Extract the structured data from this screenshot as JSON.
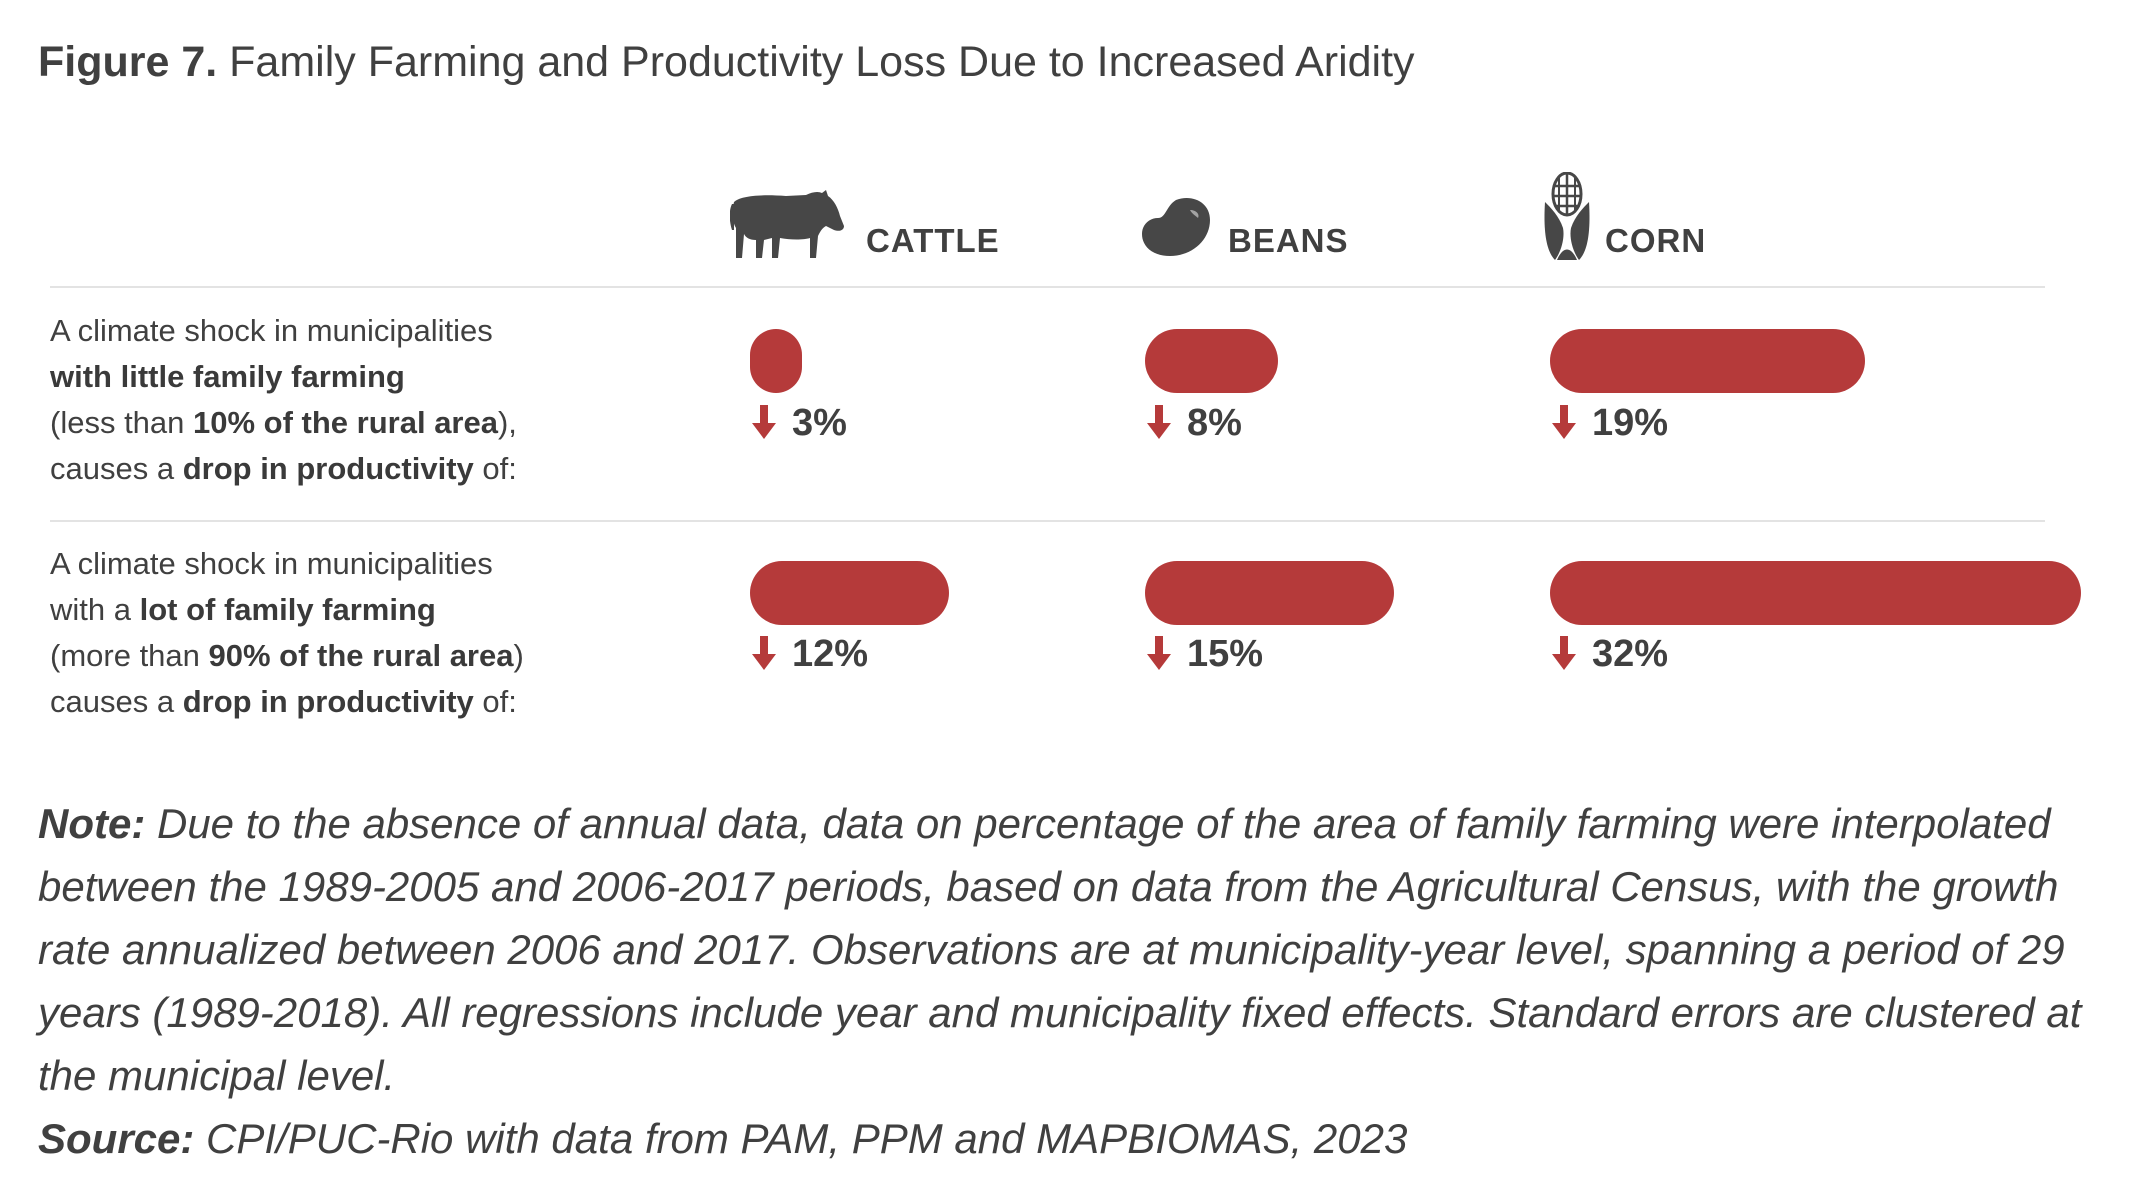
{
  "figure": {
    "label": "Figure 7.",
    "title": "Family Farming and Productivity Loss Due to Increased Aridity"
  },
  "colors": {
    "bar": "#b53a3a",
    "arrow": "#b53a3a",
    "icon": "#474747",
    "text": "#404040"
  },
  "columns": [
    {
      "name": "CATTLE",
      "icon": "cow-icon"
    },
    {
      "name": "BEANS",
      "icon": "bean-icon"
    },
    {
      "name": "CORN",
      "icon": "corn-icon"
    }
  ],
  "rows": [
    {
      "line1": "A climate shock in municipalities",
      "line2_pre": "",
      "line2_bold": "with little family farming",
      "line3_pre": "(less than ",
      "line3_bold": "10% of the rural area",
      "line3_post": "),",
      "line4_pre": "causes a ",
      "line4_bold": "drop in productivity",
      "line4_post": " of:",
      "labels": [
        "3%",
        "8%",
        "19%"
      ]
    },
    {
      "line1": "A climate shock in municipalities",
      "line2_pre": "with a ",
      "line2_bold": "lot of family farming",
      "line3_pre": "(more than ",
      "line3_bold": "90% of the rural area",
      "line3_post": ")",
      "line4_pre": "causes a ",
      "line4_bold": "drop in productivity",
      "line4_post": " of:",
      "labels": [
        "12%",
        "15%",
        "32%"
      ]
    }
  ],
  "chart_data": {
    "type": "bar",
    "title": "Family Farming and Productivity Loss Due to Increased Aridity",
    "categories": [
      "CATTLE",
      "BEANS",
      "CORN"
    ],
    "series": [
      {
        "name": "with little family farming",
        "values": [
          3,
          8,
          19
        ]
      },
      {
        "name": "lot of family farming",
        "values": [
          12,
          15,
          32
        ]
      }
    ],
    "unit": "%"
  },
  "note": {
    "label": "Note:",
    "text": " Due to the absence of annual data, data on percentage of the area of family farming were interpolated between the 1989-2005 and 2006-2017 periods, based on data from the Agricultural Census, with the growth rate annualized between 2006 and 2017. Observations are at municipality-year level, spanning a period of 29 years (1989-2018). All regressions include year and municipality fixed effects. Standard errors are clustered at the municipal level."
  },
  "source": {
    "label": "Source:",
    "text": " CPI/PUC-Rio with data from PAM, PPM and MAPBIOMAS, 2023"
  }
}
